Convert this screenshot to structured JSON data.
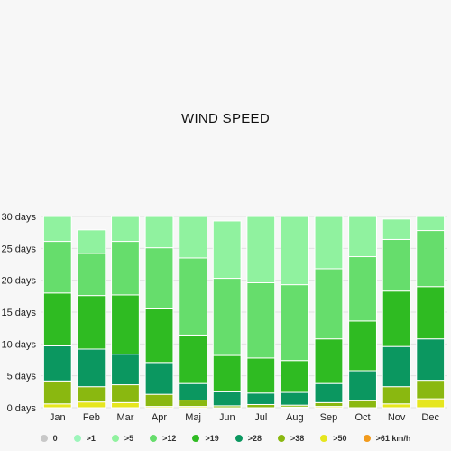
{
  "chart_data": {
    "type": "bar",
    "stacked": true,
    "title": "WIND SPEED",
    "categories": [
      "Jan",
      "Feb",
      "Mar",
      "Apr",
      "Maj",
      "Jun",
      "Jul",
      "Aug",
      "Sep",
      "Oct",
      "Nov",
      "Dec"
    ],
    "y_ticks": [
      "0 days",
      "5 days",
      "10 days",
      "15 days",
      "20 days",
      "25 days",
      "30 days"
    ],
    "ylim": [
      0,
      30
    ],
    "grid": true,
    "legend_position": "bottom",
    "series": [
      {
        "name": "0",
        "color": "#c8c8c8",
        "values": [
          0,
          0,
          0,
          0,
          0,
          0,
          0,
          0,
          0,
          0,
          0,
          0
        ]
      },
      {
        "name": ">1",
        "color": "#9df5bb",
        "values": [
          0,
          0,
          0,
          0,
          0,
          0,
          0,
          0,
          0,
          0,
          0,
          0
        ]
      },
      {
        "name": ">5",
        "color": "#90f29f",
        "values": [
          3.9,
          3.7,
          3.9,
          4.9,
          6.5,
          9.0,
          10.4,
          10.7,
          8.2,
          6.3,
          3.2,
          2.2
        ]
      },
      {
        "name": ">12",
        "color": "#66dd6c",
        "values": [
          8.1,
          6.6,
          8.4,
          9.6,
          12.1,
          12.1,
          11.8,
          11.9,
          11.0,
          10.1,
          8.1,
          8.8
        ]
      },
      {
        "name": ">19",
        "color": "#2fbb22",
        "values": [
          8.3,
          8.4,
          9.3,
          8.4,
          7.6,
          5.7,
          5.5,
          5.0,
          7.0,
          7.8,
          8.7,
          8.2
        ]
      },
      {
        "name": ">28",
        "color": "#0b9760",
        "values": [
          5.5,
          5.9,
          4.8,
          5.0,
          2.6,
          2.2,
          1.8,
          2.0,
          3.0,
          4.7,
          6.3,
          6.5
        ]
      },
      {
        "name": ">38",
        "color": "#8ab810",
        "values": [
          3.6,
          2.4,
          2.8,
          1.9,
          1.0,
          0.3,
          0.5,
          0.3,
          0.6,
          1.1,
          2.7,
          2.9
        ]
      },
      {
        "name": ">50",
        "color": "#e6e61e",
        "values": [
          0.6,
          0.9,
          0.8,
          0.2,
          0.2,
          0.0,
          0.0,
          0.1,
          0.2,
          0.0,
          0.6,
          1.4
        ]
      },
      {
        "name": ">61 km/h",
        "color": "#f29b1d",
        "values": [
          0,
          0,
          0,
          0,
          0,
          0,
          0,
          0,
          0,
          0,
          0,
          0
        ]
      }
    ]
  }
}
